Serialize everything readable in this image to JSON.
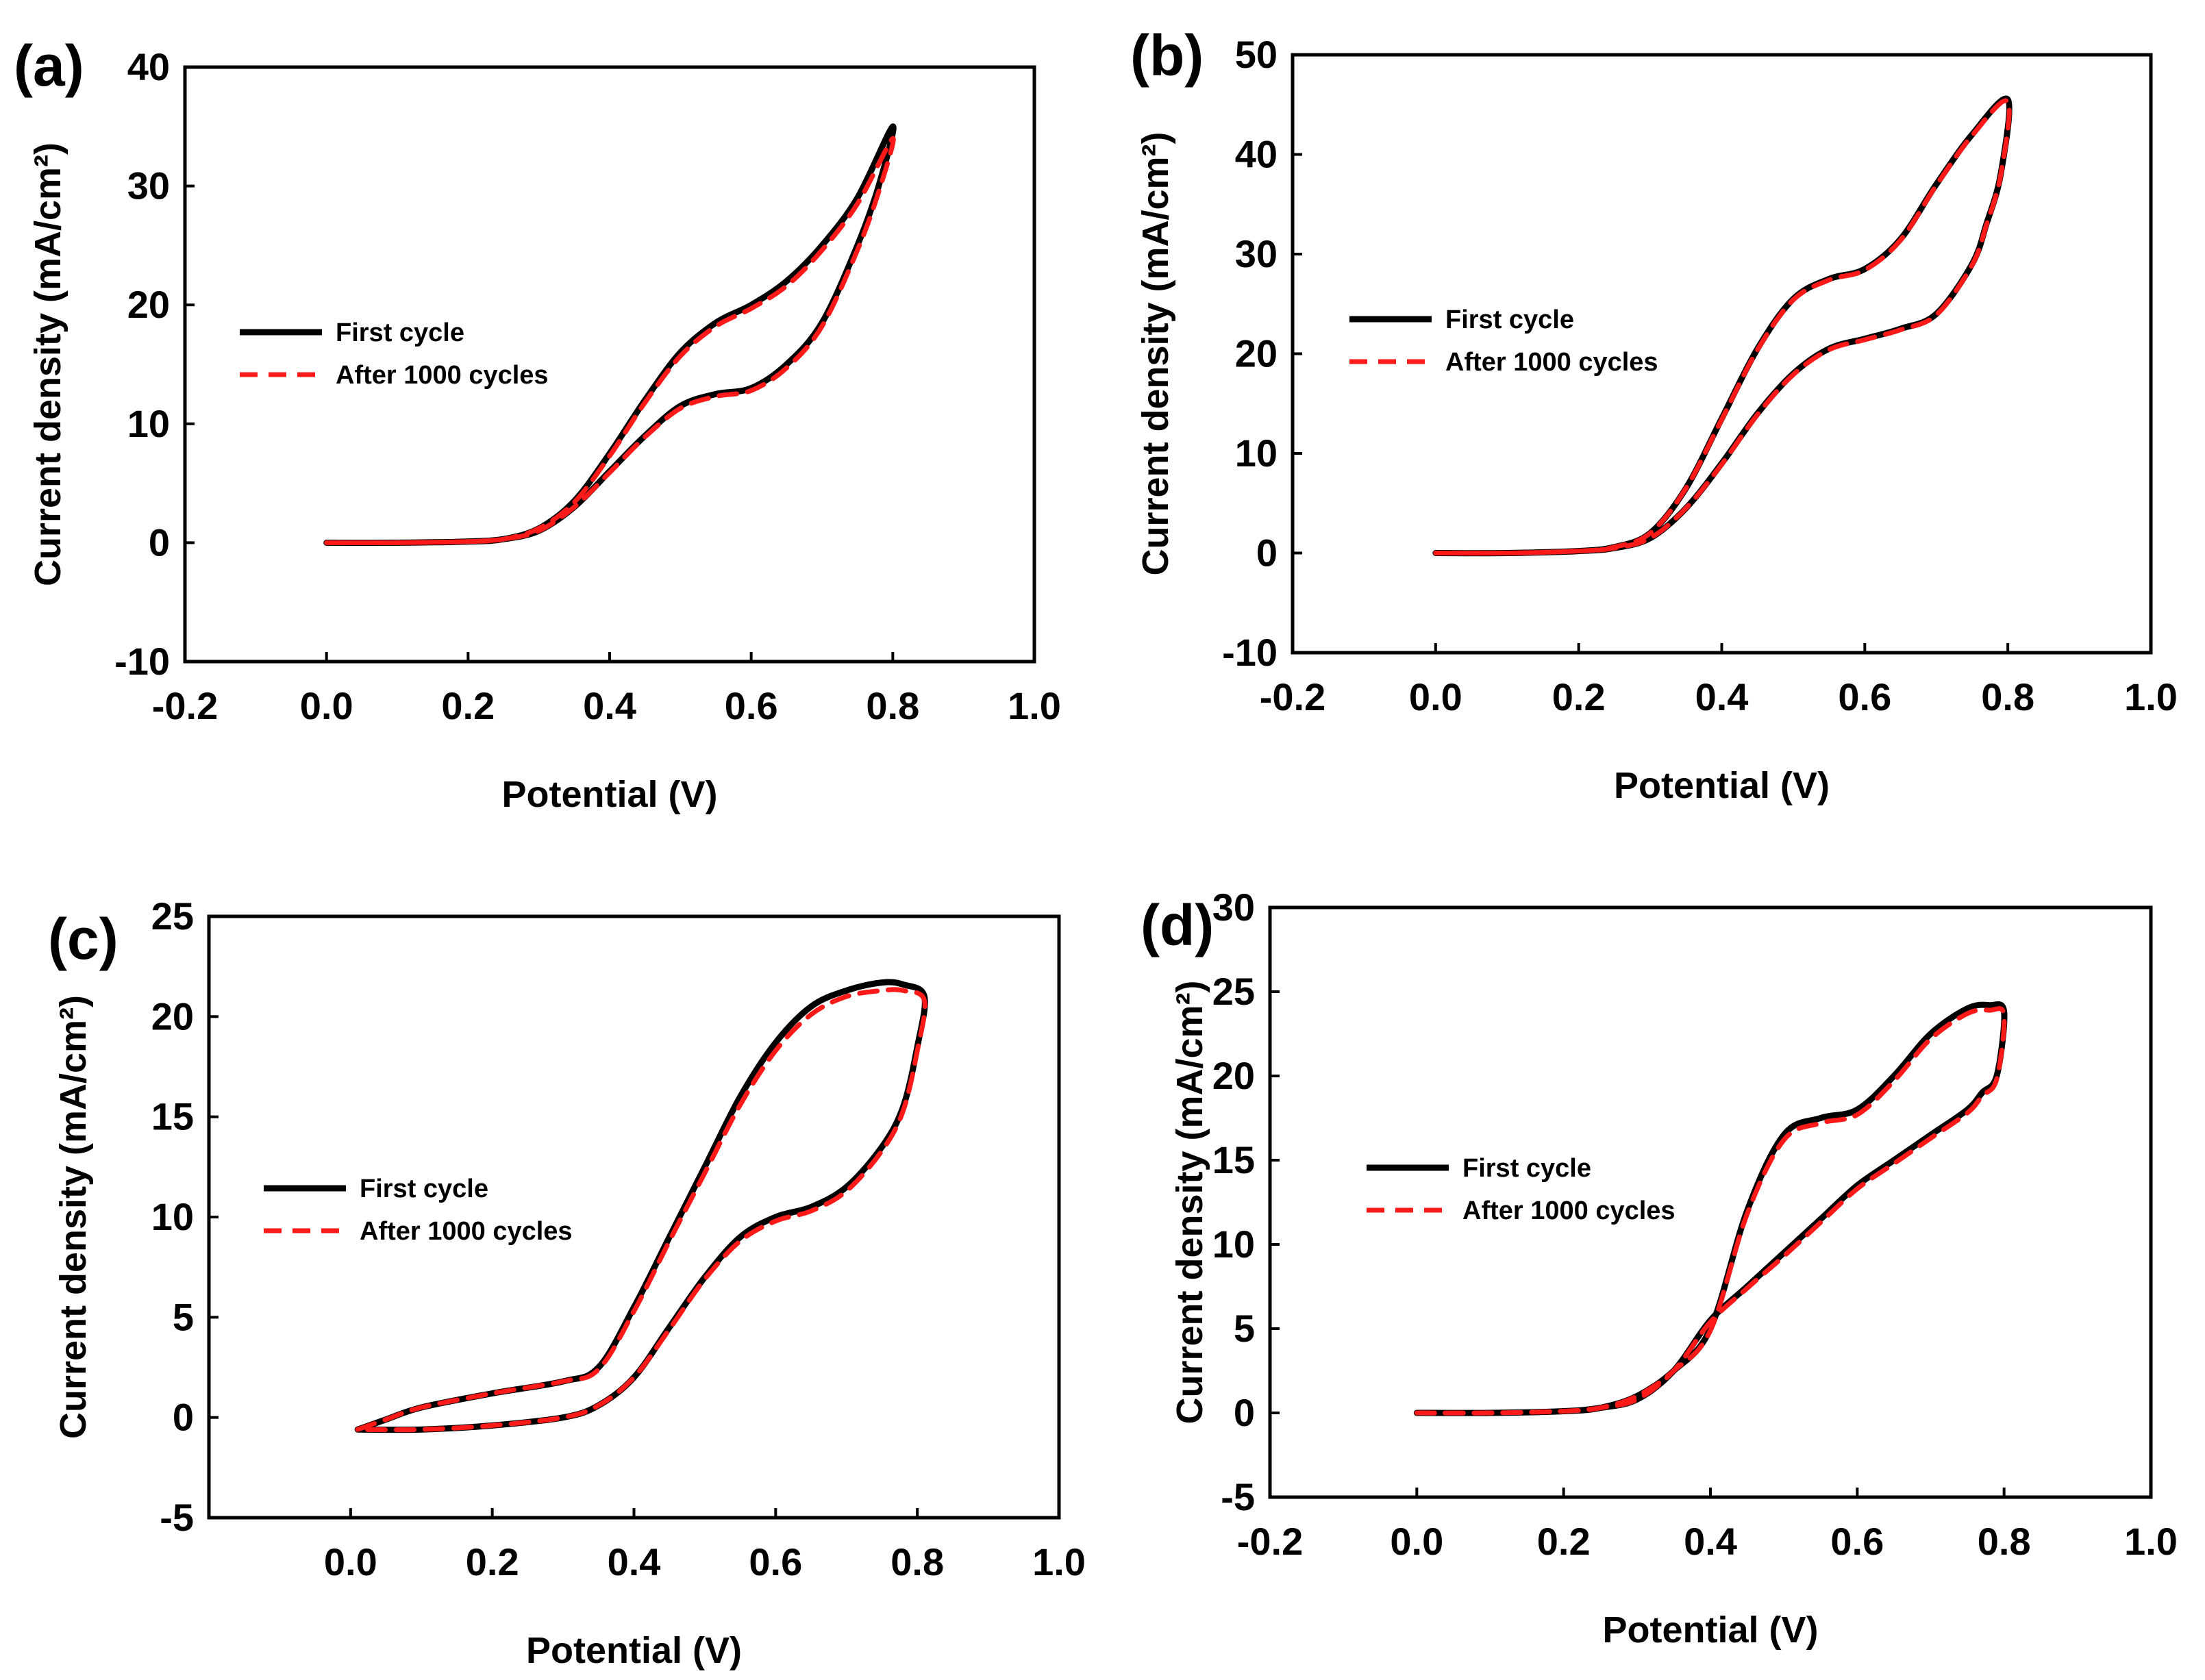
{
  "chart_data": [
    {
      "panel": "(a)",
      "type": "line",
      "xlabel": "Potential (V)",
      "ylabel": "Current density (mA/cm²)",
      "xlim": [
        -0.2,
        1.0
      ],
      "ylim": [
        -10,
        40
      ],
      "xticks": [
        "-0.2",
        "0.0",
        "0.2",
        "0.4",
        "0.6",
        "0.8",
        "1.0"
      ],
      "yticks": [
        "-10",
        "0",
        "10",
        "20",
        "30",
        "40"
      ],
      "legend_position": "center-left",
      "series": [
        {
          "name": "First cycle",
          "color": "#000000",
          "style": "solid",
          "x": [
            0.0,
            0.1,
            0.2,
            0.25,
            0.3,
            0.35,
            0.4,
            0.45,
            0.5,
            0.55,
            0.6,
            0.65,
            0.7,
            0.75,
            0.8,
            0.78,
            0.75,
            0.7,
            0.65,
            0.6,
            0.55,
            0.5,
            0.45,
            0.4,
            0.35,
            0.3,
            0.25,
            0.2,
            0.1,
            0.0
          ],
          "y": [
            0,
            0,
            0.1,
            0.3,
            1.2,
            3.5,
            7.5,
            12,
            16,
            18.5,
            20,
            22,
            25,
            29,
            35,
            30,
            25,
            18.5,
            15,
            13,
            12.5,
            11.5,
            9,
            6,
            3,
            1,
            0.3,
            0.1,
            0,
            0
          ]
        },
        {
          "name": "After 1000 cycles",
          "color": "#ff1a1a",
          "style": "dashed",
          "x": [
            0.0,
            0.1,
            0.2,
            0.25,
            0.3,
            0.35,
            0.4,
            0.45,
            0.5,
            0.55,
            0.6,
            0.65,
            0.7,
            0.75,
            0.8,
            0.78,
            0.75,
            0.7,
            0.65,
            0.6,
            0.55,
            0.5,
            0.45,
            0.4,
            0.35,
            0.3,
            0.25,
            0.2,
            0.1,
            0.0
          ],
          "y": [
            0,
            0,
            0.1,
            0.3,
            1.2,
            3.4,
            7.3,
            11.8,
            15.7,
            18.2,
            19.7,
            21.6,
            24.6,
            28.5,
            34,
            29.5,
            24.6,
            18.2,
            14.7,
            12.8,
            12.3,
            11.3,
            8.9,
            5.9,
            3,
            1,
            0.3,
            0.1,
            0,
            0
          ]
        }
      ]
    },
    {
      "panel": "(b)",
      "type": "line",
      "xlabel": "Potential (V)",
      "ylabel": "Current density (mA/cm²)",
      "xlim": [
        -0.2,
        1.0
      ],
      "ylim": [
        -10,
        50
      ],
      "xticks": [
        "-0.2",
        "0.0",
        "0.2",
        "0.4",
        "0.6",
        "0.8",
        "1.0"
      ],
      "yticks": [
        "-10",
        "0",
        "10",
        "20",
        "30",
        "40",
        "50"
      ],
      "legend_position": "center-left",
      "series": [
        {
          "name": "First cycle",
          "color": "#000000",
          "style": "solid",
          "x": [
            0.0,
            0.1,
            0.2,
            0.25,
            0.3,
            0.35,
            0.4,
            0.45,
            0.5,
            0.55,
            0.6,
            0.65,
            0.7,
            0.75,
            0.8,
            0.79,
            0.77,
            0.75,
            0.7,
            0.65,
            0.6,
            0.55,
            0.5,
            0.45,
            0.4,
            0.35,
            0.3,
            0.25,
            0.2,
            0.1,
            0.0
          ],
          "y": [
            0,
            0,
            0.2,
            0.6,
            2,
            6.5,
            13.5,
            20.5,
            25.5,
            27.5,
            28.5,
            31.5,
            37,
            42,
            45.5,
            38,
            33,
            29,
            24,
            22.5,
            21.5,
            20.5,
            18,
            14,
            9,
            4.5,
            1.5,
            0.5,
            0.2,
            0,
            0
          ]
        },
        {
          "name": "After 1000 cycles",
          "color": "#ff1a1a",
          "style": "dashed",
          "x": [
            0.0,
            0.1,
            0.2,
            0.25,
            0.3,
            0.35,
            0.4,
            0.45,
            0.5,
            0.55,
            0.6,
            0.65,
            0.7,
            0.75,
            0.8,
            0.79,
            0.77,
            0.75,
            0.7,
            0.65,
            0.6,
            0.55,
            0.5,
            0.45,
            0.4,
            0.35,
            0.3,
            0.25,
            0.2,
            0.1,
            0.0
          ],
          "y": [
            0,
            0,
            0.2,
            0.6,
            2,
            6.5,
            13.4,
            20.4,
            25.4,
            27.4,
            28.4,
            31.4,
            36.9,
            41.9,
            45.3,
            37.9,
            32.9,
            28.9,
            23.9,
            22.4,
            21.4,
            20.4,
            17.9,
            13.9,
            8.9,
            4.5,
            1.5,
            0.5,
            0.2,
            0,
            0
          ]
        }
      ]
    },
    {
      "panel": "(c)",
      "type": "line",
      "xlabel": "Potential (V)",
      "ylabel": "Current density (mA/cm²)",
      "xlim": [
        -0.2,
        1.0
      ],
      "ylim": [
        -5,
        25
      ],
      "xticks": [
        "0.0",
        "0.2",
        "0.4",
        "0.6",
        "0.8",
        "1.0"
      ],
      "xtick_values": [
        0.0,
        0.2,
        0.4,
        0.6,
        0.8,
        1.0
      ],
      "yticks": [
        "-5",
        "0",
        "5",
        "10",
        "15",
        "20",
        "25"
      ],
      "legend_position": "center-left",
      "series": [
        {
          "name": "First cycle",
          "color": "#000000",
          "style": "solid",
          "x": [
            0.01,
            0.05,
            0.1,
            0.2,
            0.3,
            0.35,
            0.4,
            0.45,
            0.5,
            0.55,
            0.6,
            0.65,
            0.7,
            0.75,
            0.78,
            0.81,
            0.8,
            0.78,
            0.75,
            0.7,
            0.65,
            0.6,
            0.55,
            0.5,
            0.45,
            0.4,
            0.35,
            0.3,
            0.2,
            0.1,
            0.01
          ],
          "y": [
            -0.6,
            -0.1,
            0.5,
            1.2,
            1.8,
            2.5,
            5.5,
            9,
            12.5,
            16,
            18.7,
            20.5,
            21.3,
            21.7,
            21.6,
            21,
            18.5,
            15.5,
            13.5,
            11.5,
            10.5,
            10,
            9,
            7,
            4.5,
            2,
            0.6,
            0,
            -0.4,
            -0.6,
            -0.6
          ]
        },
        {
          "name": "After 1000 cycles",
          "color": "#ff1a1a",
          "style": "dashed",
          "x": [
            0.01,
            0.05,
            0.1,
            0.2,
            0.3,
            0.35,
            0.4,
            0.45,
            0.5,
            0.55,
            0.6,
            0.65,
            0.7,
            0.75,
            0.78,
            0.81,
            0.8,
            0.78,
            0.75,
            0.7,
            0.65,
            0.6,
            0.55,
            0.5,
            0.45,
            0.4,
            0.35,
            0.3,
            0.2,
            0.1,
            0.01
          ],
          "y": [
            -0.6,
            -0.1,
            0.5,
            1.2,
            1.8,
            2.4,
            5.3,
            8.8,
            12.2,
            15.6,
            18.3,
            20.1,
            21,
            21.3,
            21.3,
            20.8,
            18.3,
            15.3,
            13.3,
            11.3,
            10.3,
            9.8,
            8.8,
            6.9,
            4.4,
            2,
            0.6,
            0,
            -0.4,
            -0.6,
            -0.6
          ]
        }
      ]
    },
    {
      "panel": "(d)",
      "type": "line",
      "xlabel": "Potential (V)",
      "ylabel": "Current density (mA/cm²)",
      "xlim": [
        -0.2,
        1.0
      ],
      "ylim": [
        -5,
        30
      ],
      "xticks": [
        "-0.2",
        "0.0",
        "0.2",
        "0.4",
        "0.6",
        "0.8",
        "1.0"
      ],
      "yticks": [
        "-5",
        "0",
        "5",
        "10",
        "15",
        "20",
        "25",
        "30"
      ],
      "legend_position": "center-left",
      "series": [
        {
          "name": "First cycle",
          "color": "#000000",
          "style": "solid",
          "x": [
            0.0,
            0.1,
            0.2,
            0.25,
            0.3,
            0.35,
            0.4,
            0.45,
            0.5,
            0.55,
            0.6,
            0.65,
            0.7,
            0.75,
            0.78,
            0.8,
            0.79,
            0.77,
            0.75,
            0.7,
            0.65,
            0.6,
            0.55,
            0.5,
            0.45,
            0.4,
            0.35,
            0.3,
            0.25,
            0.2,
            0.1,
            0.0
          ],
          "y": [
            0,
            0,
            0.1,
            0.3,
            1,
            2.5,
            5,
            12,
            16.5,
            17.5,
            18,
            20,
            22.5,
            24,
            24.2,
            23.8,
            20,
            19,
            18,
            16.5,
            15,
            13.5,
            11.5,
            9.5,
            7.5,
            5.5,
            2.5,
            0.8,
            0.3,
            0.1,
            0,
            0
          ]
        },
        {
          "name": "After 1000 cycles",
          "color": "#ff1a1a",
          "style": "dashed",
          "x": [
            0.0,
            0.1,
            0.2,
            0.25,
            0.3,
            0.35,
            0.4,
            0.45,
            0.5,
            0.55,
            0.6,
            0.65,
            0.7,
            0.75,
            0.78,
            0.8,
            0.79,
            0.77,
            0.75,
            0.7,
            0.65,
            0.6,
            0.55,
            0.5,
            0.45,
            0.4,
            0.35,
            0.3,
            0.25,
            0.2,
            0.1,
            0.0
          ],
          "y": [
            0,
            0,
            0.1,
            0.3,
            1,
            2.5,
            4.9,
            11.8,
            16.2,
            17.2,
            17.7,
            19.7,
            22.2,
            23.7,
            23.9,
            23.6,
            19.8,
            18.8,
            17.8,
            16.3,
            14.8,
            13.3,
            11.3,
            9.3,
            7.4,
            5.4,
            2.5,
            0.8,
            0.3,
            0.1,
            0,
            0
          ]
        }
      ]
    }
  ]
}
